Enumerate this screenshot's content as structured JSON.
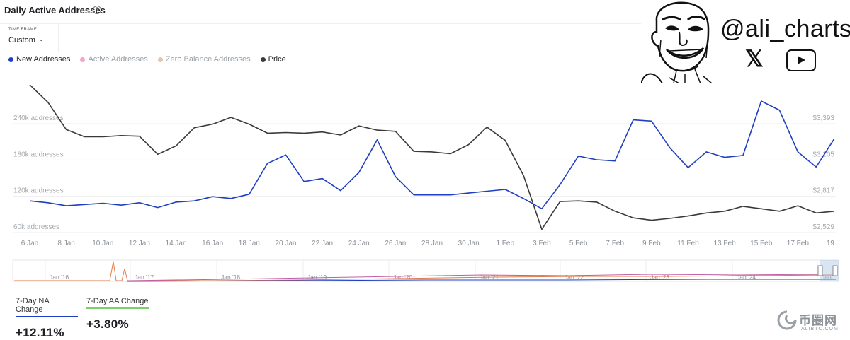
{
  "header": {
    "title": "Daily Active Addresses",
    "help_icon": "?"
  },
  "timeframe": {
    "label": "TIME FRAME",
    "value": "Custom"
  },
  "legend": [
    {
      "label": "New Addresses",
      "color": "#1f3fbf"
    },
    {
      "label": "Active Addresses",
      "color": "#f2a7c9"
    },
    {
      "label": "Zero Balance Addresses",
      "color": "#ecc2a4"
    },
    {
      "label": "Price",
      "color": "#3a3a3a"
    }
  ],
  "chart_data": {
    "type": "line",
    "xlabels": [
      "6 Jan",
      "8 Jan",
      "10 Jan",
      "12 Jan",
      "14 Jan",
      "16 Jan",
      "18 Jan",
      "20 Jan",
      "22 Jan",
      "24 Jan",
      "26 Jan",
      "28 Jan",
      "30 Jan",
      "1 Feb",
      "3 Feb",
      "5 Feb",
      "7 Feb",
      "9 Feb",
      "11 Feb",
      "13 Feb",
      "15 Feb",
      "17 Feb",
      "19 ..."
    ],
    "left_axis": {
      "ticks": [
        240000,
        180000,
        120000,
        60000
      ],
      "labels": [
        "240k addresses",
        "180k addresses",
        "120k addresses",
        "60k addresses"
      ],
      "range": [
        60000,
        240000
      ]
    },
    "right_axis": {
      "ticks": [
        3393,
        3105,
        2817,
        2529
      ],
      "labels": [
        "$3,393",
        "$3,105",
        "$2,817",
        "$2,529"
      ],
      "range": [
        2529,
        3393
      ]
    },
    "series": [
      {
        "name": "New Addresses",
        "axis": "left",
        "color": "#1f3fbf",
        "values": [
          103000,
          100000,
          95000,
          97000,
          99000,
          96000,
          100000,
          92000,
          101000,
          103000,
          110000,
          107000,
          114000,
          165000,
          179000,
          135000,
          140000,
          120000,
          150000,
          204000,
          143000,
          113000,
          113000,
          113000,
          116000,
          119000,
          122000,
          107000,
          90000,
          130000,
          177000,
          171000,
          169000,
          237000,
          235000,
          191000,
          158000,
          184000,
          175000,
          178000,
          268000,
          253000,
          184000,
          159000,
          206000
        ]
      },
      {
        "name": "Price",
        "axis": "left",
        "color": "#3a3a3a",
        "values": [
          295000,
          266000,
          221000,
          209000,
          209000,
          211000,
          210000,
          180000,
          194000,
          224000,
          230000,
          241000,
          230000,
          215000,
          216000,
          215000,
          217000,
          212000,
          227000,
          220000,
          218000,
          185000,
          184000,
          181000,
          196000,
          225000,
          203000,
          145000,
          56000,
          102000,
          103000,
          101000,
          86000,
          75000,
          71000,
          74000,
          78000,
          83000,
          86000,
          94000,
          90000,
          86000,
          95000,
          83000,
          86000
        ]
      }
    ],
    "navigator": {
      "labels": [
        "Jan '16",
        "Jan '17",
        "Jan '18",
        "Jan '19",
        "Jan '20",
        "Jan '21",
        "Jan '22",
        "Jan '23",
        "Jan '24",
        "Jan"
      ]
    }
  },
  "stats": [
    {
      "label": "7-Day NA Change",
      "value": "+12.11%",
      "color": "#1f3fbf"
    },
    {
      "label": "7-Day AA Change",
      "value": "+3.80%",
      "color": "#7ccf6a"
    }
  ],
  "branding": {
    "handle": "@ali_charts",
    "x_icon": "𝕏",
    "watermark": "币圈网",
    "watermark_sub": "ALIBTC.COM"
  }
}
